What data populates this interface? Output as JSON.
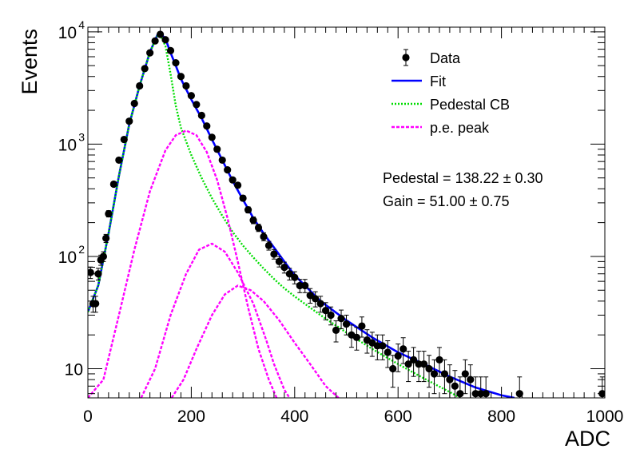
{
  "chart_data": {
    "type": "scatter",
    "xlabel": "ADC",
    "ylabel": "Events",
    "xlim": [
      0,
      1000
    ],
    "ylim": [
      5.5,
      11000
    ],
    "log_y": true,
    "x_ticks": [
      "0",
      "200",
      "400",
      "600",
      "800",
      "1000"
    ],
    "y_ticks": [
      {
        "value": 10,
        "label": "10"
      },
      {
        "value": 100,
        "label": "10",
        "exp": "2"
      },
      {
        "value": 1000,
        "label": "10",
        "exp": "3"
      },
      {
        "value": 10000,
        "label": "10",
        "exp": "4"
      }
    ],
    "legend_position": "top-right",
    "legend": [
      {
        "name": "Data",
        "style": "marker",
        "color": "#000000"
      },
      {
        "name": "Fit",
        "style": "solid",
        "color": "#0000ff"
      },
      {
        "name": "Pedestal CB",
        "style": "dotted",
        "color": "#00dd00"
      },
      {
        "name": "p.e. peak",
        "style": "dashed",
        "color": "#ff00ff"
      }
    ],
    "annotations": [
      "Pedestal = 138.22 ± 0.30",
      "Gain = 51.00 ± 0.75"
    ],
    "data_points": [
      [
        5,
        72
      ],
      [
        10,
        38
      ],
      [
        15,
        38
      ],
      [
        20,
        70
      ],
      [
        25,
        93
      ],
      [
        30,
        100
      ],
      [
        35,
        145
      ],
      [
        40,
        240
      ],
      [
        50,
        440
      ],
      [
        60,
        720
      ],
      [
        70,
        1100
      ],
      [
        80,
        1600
      ],
      [
        90,
        2300
      ],
      [
        100,
        3300
      ],
      [
        110,
        4700
      ],
      [
        120,
        6500
      ],
      [
        130,
        8300
      ],
      [
        140,
        9500
      ],
      [
        150,
        8500
      ],
      [
        160,
        6800
      ],
      [
        170,
        5300
      ],
      [
        180,
        4000
      ],
      [
        190,
        3300
      ],
      [
        200,
        2700
      ],
      [
        210,
        2250
      ],
      [
        220,
        1800
      ],
      [
        230,
        1450
      ],
      [
        240,
        1150
      ],
      [
        250,
        900
      ],
      [
        260,
        720
      ],
      [
        270,
        590
      ],
      [
        280,
        480
      ],
      [
        290,
        430
      ],
      [
        300,
        330
      ],
      [
        310,
        260
      ],
      [
        320,
        210
      ],
      [
        330,
        180
      ],
      [
        340,
        150
      ],
      [
        350,
        125
      ],
      [
        360,
        105
      ],
      [
        370,
        90
      ],
      [
        380,
        80
      ],
      [
        390,
        70
      ],
      [
        400,
        65
      ],
      [
        410,
        55
      ],
      [
        420,
        55
      ],
      [
        430,
        45
      ],
      [
        440,
        42
      ],
      [
        450,
        38
      ],
      [
        460,
        33
      ],
      [
        470,
        30
      ],
      [
        480,
        22
      ],
      [
        490,
        28
      ],
      [
        500,
        25
      ],
      [
        510,
        20
      ],
      [
        520,
        19
      ],
      [
        530,
        24
      ],
      [
        540,
        18
      ],
      [
        550,
        17
      ],
      [
        560,
        16
      ],
      [
        570,
        16
      ],
      [
        580,
        14
      ],
      [
        590,
        10
      ],
      [
        600,
        13
      ],
      [
        610,
        15
      ],
      [
        620,
        11
      ],
      [
        630,
        12
      ],
      [
        640,
        11
      ],
      [
        650,
        11
      ],
      [
        660,
        10
      ],
      [
        670,
        9
      ],
      [
        680,
        12
      ],
      [
        690,
        9
      ],
      [
        700,
        8
      ],
      [
        710,
        7
      ],
      [
        720,
        6
      ],
      [
        730,
        9
      ],
      [
        740,
        8
      ],
      [
        750,
        6
      ],
      [
        760,
        6
      ],
      [
        770,
        6
      ],
      [
        835,
        6
      ],
      [
        995,
        6
      ]
    ],
    "series": [
      {
        "name": "Fit",
        "color": "#0000ff",
        "points": [
          [
            0,
            32
          ],
          [
            20,
            55
          ],
          [
            40,
            160
          ],
          [
            60,
            520
          ],
          [
            80,
            1500
          ],
          [
            100,
            3300
          ],
          [
            120,
            6600
          ],
          [
            135,
            9500
          ],
          [
            140,
            9700
          ],
          [
            150,
            8700
          ],
          [
            160,
            6500
          ],
          [
            170,
            5000
          ],
          [
            180,
            3800
          ],
          [
            200,
            2500
          ],
          [
            220,
            1700
          ],
          [
            240,
            1100
          ],
          [
            260,
            720
          ],
          [
            280,
            470
          ],
          [
            300,
            320
          ],
          [
            320,
            220
          ],
          [
            340,
            160
          ],
          [
            360,
            120
          ],
          [
            380,
            90
          ],
          [
            400,
            68
          ],
          [
            450,
            40
          ],
          [
            500,
            27
          ],
          [
            550,
            19
          ],
          [
            600,
            14
          ],
          [
            650,
            11
          ],
          [
            700,
            8.5
          ],
          [
            750,
            6.8
          ],
          [
            800,
            5.8
          ],
          [
            825,
            5.5
          ]
        ]
      },
      {
        "name": "Pedestal CB",
        "color": "#00dd00",
        "points": [
          [
            0,
            32
          ],
          [
            20,
            55
          ],
          [
            40,
            160
          ],
          [
            60,
            520
          ],
          [
            80,
            1500
          ],
          [
            100,
            3300
          ],
          [
            120,
            6600
          ],
          [
            135,
            9300
          ],
          [
            140,
            9300
          ],
          [
            150,
            7500
          ],
          [
            160,
            4200
          ],
          [
            170,
            2200
          ],
          [
            180,
            1400
          ],
          [
            200,
            800
          ],
          [
            220,
            500
          ],
          [
            240,
            330
          ],
          [
            260,
            230
          ],
          [
            280,
            165
          ],
          [
            300,
            125
          ],
          [
            320,
            98
          ],
          [
            340,
            78
          ],
          [
            360,
            63
          ],
          [
            380,
            52
          ],
          [
            400,
            44
          ],
          [
            450,
            30
          ],
          [
            500,
            21
          ],
          [
            550,
            15
          ],
          [
            600,
            11
          ],
          [
            650,
            8.2
          ],
          [
            700,
            6.2
          ],
          [
            720,
            5.5
          ]
        ]
      },
      {
        "name": "p.e. peak 1",
        "color": "#ff00ff",
        "points": [
          [
            0,
            5.5
          ],
          [
            30,
            8
          ],
          [
            60,
            30
          ],
          [
            90,
            115
          ],
          [
            120,
            380
          ],
          [
            150,
            880
          ],
          [
            170,
            1200
          ],
          [
            190,
            1320
          ],
          [
            210,
            1200
          ],
          [
            230,
            850
          ],
          [
            250,
            480
          ],
          [
            270,
            220
          ],
          [
            290,
            90
          ],
          [
            310,
            35
          ],
          [
            330,
            15
          ],
          [
            350,
            8
          ],
          [
            365,
            5.5
          ]
        ]
      },
      {
        "name": "p.e. peak 2",
        "color": "#ff00ff",
        "points": [
          [
            103,
            5.5
          ],
          [
            130,
            10
          ],
          [
            160,
            30
          ],
          [
            190,
            70
          ],
          [
            215,
            115
          ],
          [
            240,
            130
          ],
          [
            265,
            110
          ],
          [
            290,
            72
          ],
          [
            320,
            38
          ],
          [
            345,
            18
          ],
          [
            360,
            11
          ],
          [
            380,
            6.5
          ],
          [
            390,
            5.5
          ]
        ]
      },
      {
        "name": "p.e. peak 3",
        "color": "#ff00ff",
        "points": [
          [
            162,
            5.5
          ],
          [
            185,
            8
          ],
          [
            210,
            15
          ],
          [
            240,
            30
          ],
          [
            265,
            46
          ],
          [
            290,
            55
          ],
          [
            315,
            50
          ],
          [
            340,
            40
          ],
          [
            370,
            27
          ],
          [
            400,
            17
          ],
          [
            430,
            11
          ],
          [
            460,
            7
          ],
          [
            485,
            5.5
          ]
        ]
      }
    ]
  }
}
